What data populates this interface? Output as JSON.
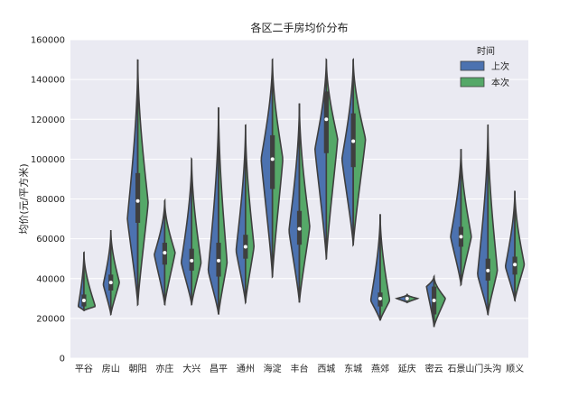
{
  "chart_data": {
    "type": "violin",
    "title": "各区二手房均价分布",
    "ylabel": "均价(元/平方米)",
    "xlabel": "",
    "ylim": [
      0,
      160000
    ],
    "yticks": [
      0,
      20000,
      40000,
      60000,
      80000,
      100000,
      120000,
      140000,
      160000
    ],
    "grid": true,
    "legend": {
      "title": "时间",
      "placement": "top-right",
      "entries": [
        {
          "name": "上次",
          "color": "#4c72b0"
        },
        {
          "name": "本次",
          "color": "#55a868"
        }
      ]
    },
    "categories": [
      "平谷",
      "房山",
      "朝阳",
      "亦庄",
      "大兴",
      "昌平",
      "通州",
      "海淀",
      "丰台",
      "西城",
      "东城",
      "燕郊",
      "延庆",
      "密云",
      "石景山",
      "门头沟",
      "顺义"
    ],
    "distributions": [
      {
        "min": 24000,
        "max": 53000,
        "q1": 26000,
        "median": 29000,
        "q3": 32000,
        "left_peak": 26000,
        "right_peak": 26000,
        "left_w": 0.3,
        "right_w": 0.6
      },
      {
        "min": 22000,
        "max": 64000,
        "q1": 34000,
        "median": 38000,
        "q3": 42000,
        "left_peak": 37000,
        "right_peak": 38000,
        "left_w": 0.4,
        "right_w": 0.45
      },
      {
        "min": 27000,
        "max": 150000,
        "q1": 68000,
        "median": 79000,
        "q3": 93000,
        "left_peak": 70000,
        "right_peak": 78000,
        "left_w": 0.55,
        "right_w": 0.55
      },
      {
        "min": 27000,
        "max": 79000,
        "q1": 47000,
        "median": 53000,
        "q3": 58000,
        "left_peak": 52000,
        "right_peak": 53000,
        "left_w": 0.55,
        "right_w": 0.55
      },
      {
        "min": 27000,
        "max": 100000,
        "q1": 44000,
        "median": 49000,
        "q3": 55000,
        "left_peak": 48000,
        "right_peak": 48000,
        "left_w": 0.55,
        "right_w": 0.5
      },
      {
        "min": 22000,
        "max": 126000,
        "q1": 41000,
        "median": 49000,
        "q3": 58000,
        "left_peak": 44000,
        "right_peak": 48000,
        "left_w": 0.55,
        "right_w": 0.45
      },
      {
        "min": 28000,
        "max": 117000,
        "q1": 50000,
        "median": 56000,
        "q3": 62000,
        "left_peak": 54000,
        "right_peak": 56000,
        "left_w": 0.5,
        "right_w": 0.45
      },
      {
        "min": 41000,
        "max": 150000,
        "q1": 85000,
        "median": 100000,
        "q3": 112000,
        "left_peak": 100000,
        "right_peak": 100000,
        "left_w": 0.6,
        "right_w": 0.55
      },
      {
        "min": 28000,
        "max": 128000,
        "q1": 57000,
        "median": 65000,
        "q3": 74000,
        "left_peak": 64000,
        "right_peak": 66000,
        "left_w": 0.55,
        "right_w": 0.55
      },
      {
        "min": 50000,
        "max": 150000,
        "q1": 103000,
        "median": 120000,
        "q3": 134000,
        "left_peak": 105000,
        "right_peak": 110000,
        "left_w": 0.6,
        "right_w": 0.6
      },
      {
        "min": 57000,
        "max": 150000,
        "q1": 96000,
        "median": 109000,
        "q3": 123000,
        "left_peak": 100000,
        "right_peak": 110000,
        "left_w": 0.6,
        "right_w": 0.65
      },
      {
        "min": 19000,
        "max": 72000,
        "q1": 26000,
        "median": 30000,
        "q3": 33000,
        "left_peak": 29000,
        "right_peak": 29000,
        "left_w": 0.5,
        "right_w": 0.5
      },
      {
        "min": 28000,
        "max": 32000,
        "q1": 29000,
        "median": 30000,
        "q3": 31000,
        "left_peak": 30000,
        "right_peak": 30000,
        "left_w": 0.55,
        "right_w": 0.55
      },
      {
        "min": 16000,
        "max": 41000,
        "q1": 22000,
        "median": 29000,
        "q3": 36000,
        "left_peak": 36000,
        "right_peak": 30000,
        "left_w": 0.4,
        "right_w": 0.6
      },
      {
        "min": 37000,
        "max": 105000,
        "q1": 56000,
        "median": 61000,
        "q3": 66000,
        "left_peak": 61000,
        "right_peak": 61000,
        "left_w": 0.55,
        "right_w": 0.55
      },
      {
        "min": 22000,
        "max": 117000,
        "q1": 39000,
        "median": 44000,
        "q3": 50000,
        "left_peak": 42000,
        "right_peak": 44000,
        "left_w": 0.55,
        "right_w": 0.5
      },
      {
        "min": 29000,
        "max": 84000,
        "q1": 42000,
        "median": 47000,
        "q3": 51000,
        "left_peak": 46000,
        "right_peak": 47000,
        "left_w": 0.5,
        "right_w": 0.5
      }
    ]
  }
}
